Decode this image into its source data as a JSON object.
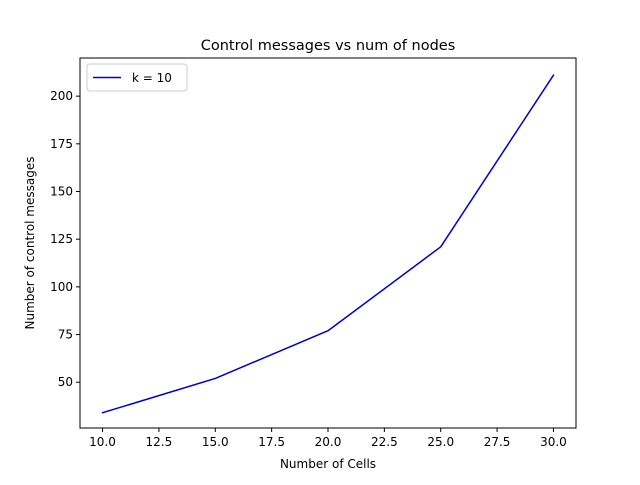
{
  "chart_data": {
    "type": "line",
    "title": "Control messages vs num of nodes",
    "xlabel": "Number of Cells",
    "ylabel": "Number of control messages",
    "xlim": [
      9.0,
      31.0
    ],
    "ylim": [
      26.0,
      220.0
    ],
    "xticks": [
      10.0,
      12.5,
      15.0,
      17.5,
      20.0,
      22.5,
      25.0,
      27.5,
      30.0
    ],
    "xtick_labels": [
      "10.0",
      "12.5",
      "15.0",
      "17.5",
      "20.0",
      "22.5",
      "25.0",
      "27.5",
      "30.0"
    ],
    "yticks": [
      50,
      75,
      100,
      125,
      150,
      175,
      200
    ],
    "ytick_labels": [
      "50",
      "75",
      "100",
      "125",
      "150",
      "175",
      "200"
    ],
    "grid": false,
    "legend_position": "upper-left",
    "series": [
      {
        "name": "k = 10",
        "color": "#0000cc",
        "x": [
          10,
          15,
          20,
          25,
          30
        ],
        "y": [
          34,
          52,
          77,
          121,
          211
        ]
      }
    ]
  }
}
